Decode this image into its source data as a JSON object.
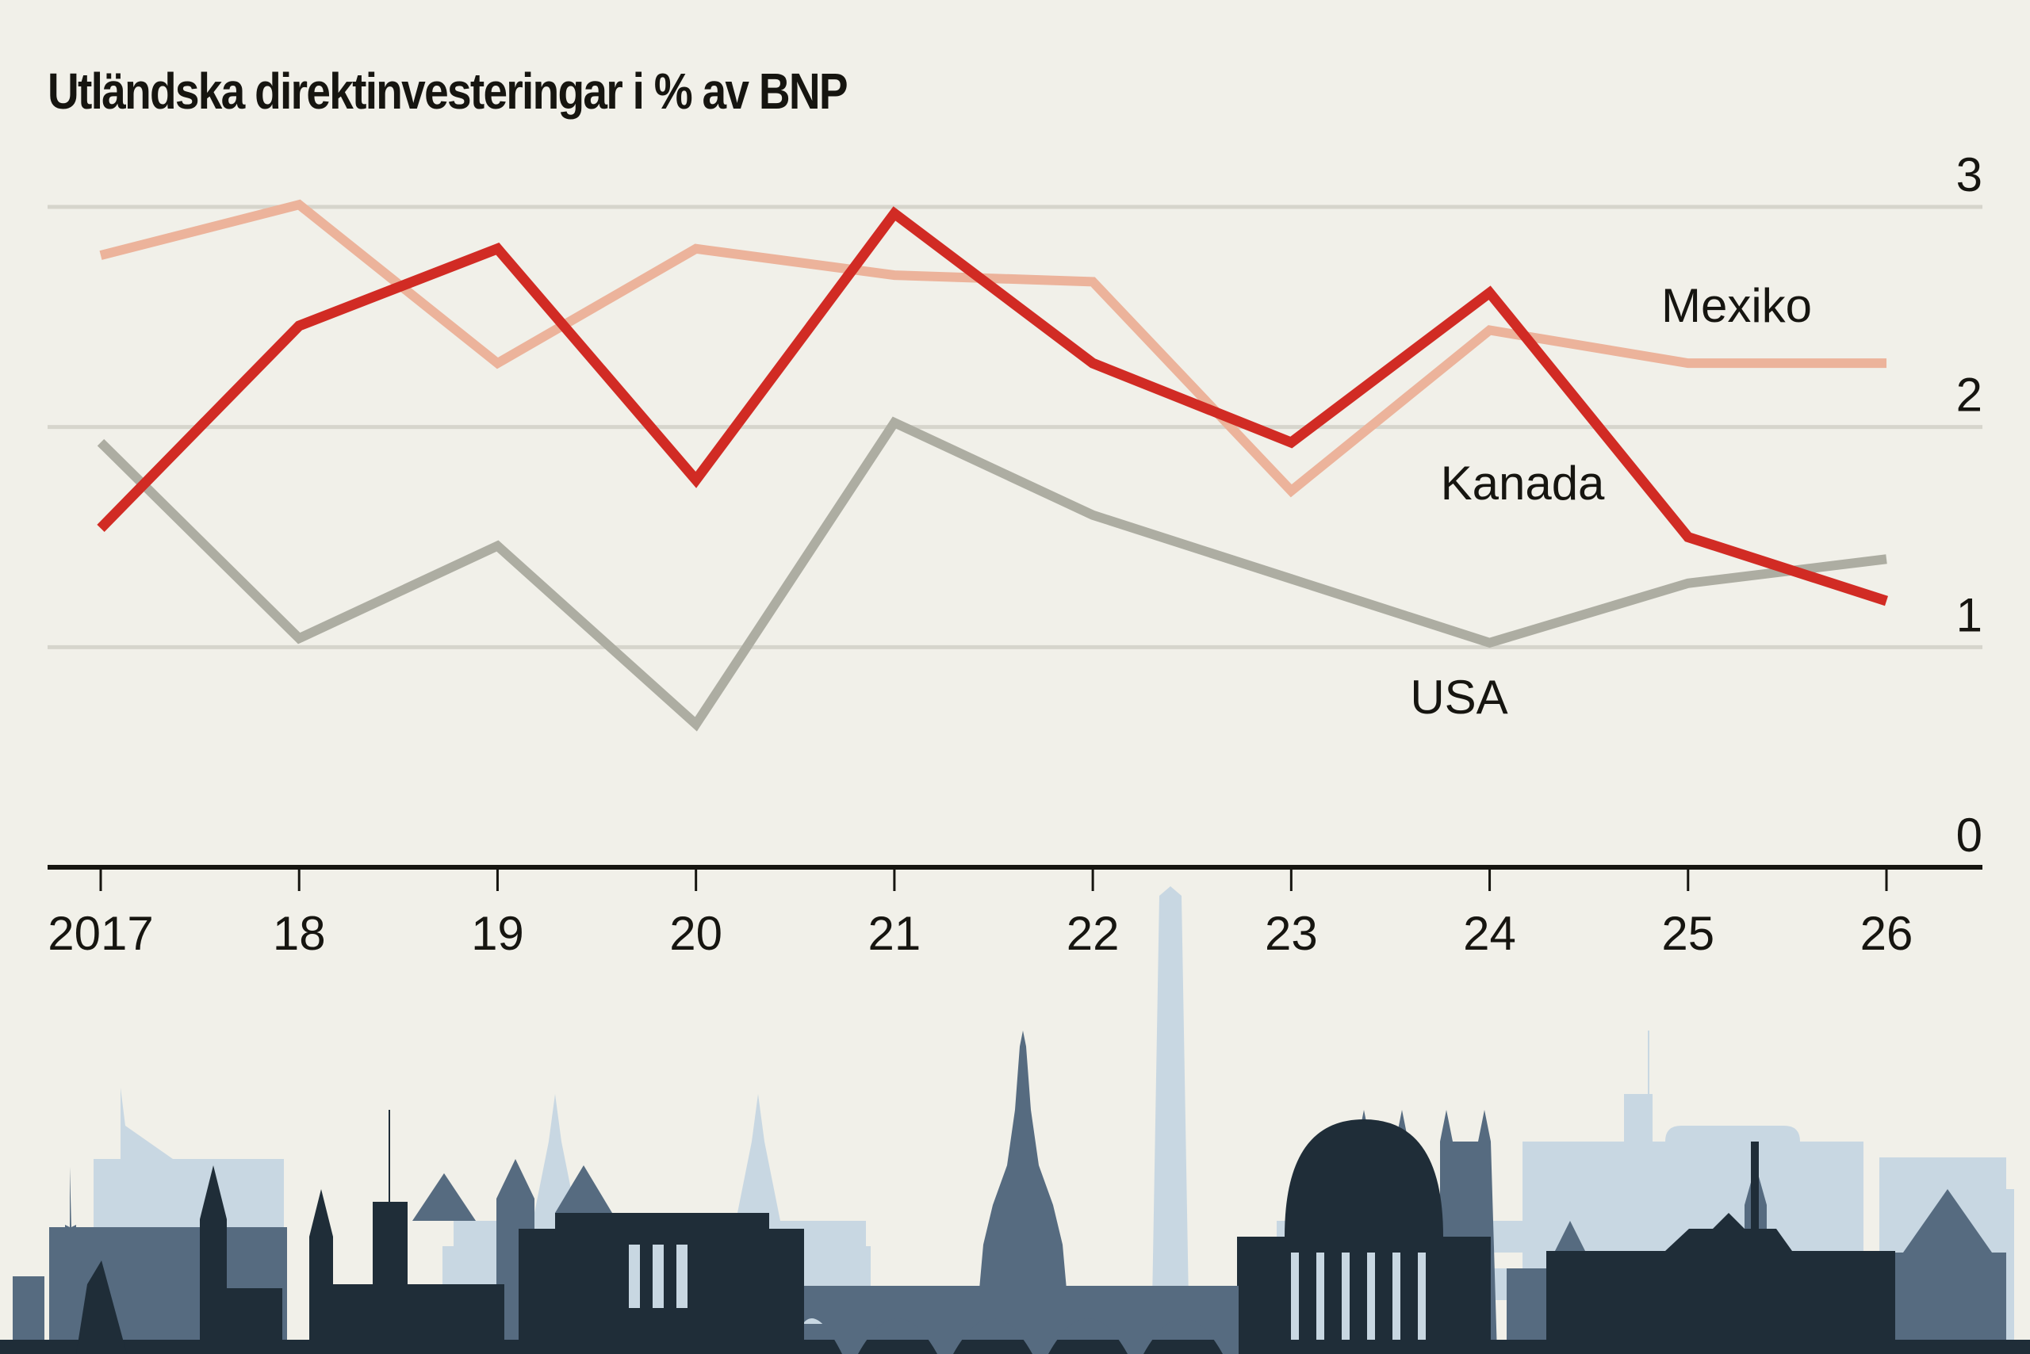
{
  "chart_data": {
    "type": "line",
    "title": "Utländska direktinvesteringar i % av BNP",
    "xlabel": "",
    "ylabel": "",
    "x": [
      "2017",
      "18",
      "19",
      "20",
      "21",
      "22",
      "23",
      "24",
      "25",
      "26"
    ],
    "ylim": [
      0,
      3
    ],
    "yticks": [
      "0",
      "1",
      "2",
      "3"
    ],
    "grid": true,
    "series": [
      {
        "name": "Mexiko",
        "color": "#ecb39b",
        "values": [
          2.78,
          3.01,
          2.29,
          2.81,
          2.69,
          2.66,
          1.71,
          2.44,
          2.29,
          2.29
        ]
      },
      {
        "name": "USA",
        "color": "#adada2",
        "values": [
          1.93,
          1.04,
          1.46,
          0.65,
          2.02,
          1.6,
          1.31,
          1.02,
          1.29,
          1.4
        ]
      },
      {
        "name": "Kanada",
        "color": "#d12b24",
        "values": [
          1.54,
          2.46,
          2.81,
          1.76,
          2.97,
          2.29,
          1.93,
          2.61,
          1.5,
          1.21
        ]
      }
    ],
    "annotations": [
      {
        "text": "Mexiko",
        "series": "Mexiko"
      },
      {
        "text": "Kanada",
        "series": "Kanada"
      },
      {
        "text": "USA",
        "series": "USA"
      }
    ]
  },
  "decoration": {
    "skyline": "Washington D.C. skyline silhouette",
    "colors": {
      "light": "#c8d7e2",
      "mid": "#566b80",
      "dark": "#1f2d38",
      "background": "#f1f0e9",
      "grid": "#d6d5cc",
      "axis": "#161510"
    }
  }
}
